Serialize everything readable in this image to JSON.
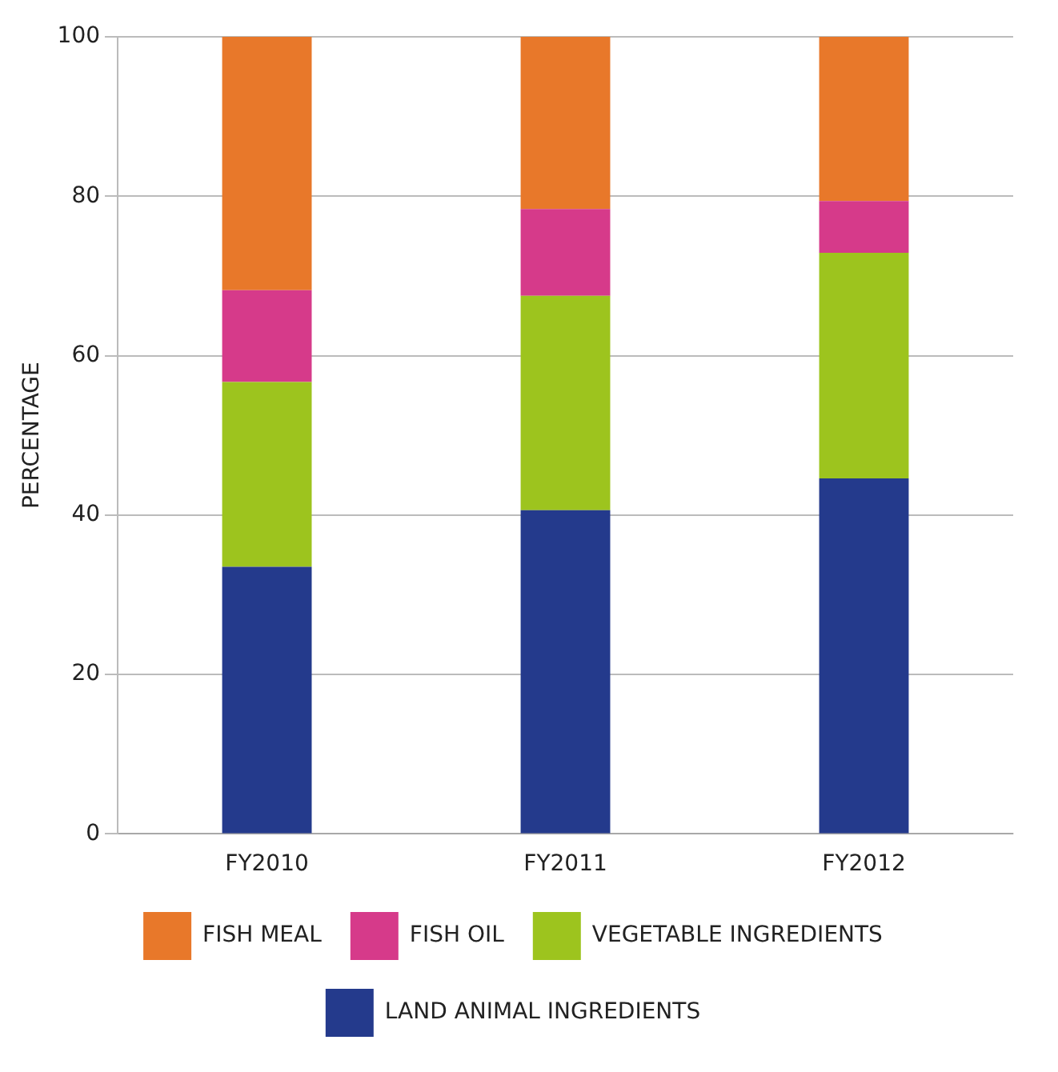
{
  "chart_data": {
    "type": "bar",
    "stacked": true,
    "ylabel": "PERCENTAGE",
    "categories": [
      "FY2010",
      "FY2011",
      "FY2012"
    ],
    "series": [
      {
        "name": "LAND ANIMAL INGREDIENTS",
        "color": "#243a8c",
        "values": [
          33.5,
          40.6,
          44.6
        ]
      },
      {
        "name": "VEGETABLE INGREDIENTS",
        "color": "#9dc41e",
        "values": [
          23.2,
          26.9,
          28.3
        ]
      },
      {
        "name": "FISH OIL",
        "color": "#d63a8a",
        "values": [
          11.5,
          10.9,
          6.5
        ]
      },
      {
        "name": "FISH MEAL",
        "color": "#e8782a",
        "values": [
          31.8,
          21.6,
          20.6
        ]
      }
    ],
    "ylim": [
      0,
      100
    ],
    "yticks": [
      0,
      20,
      40,
      60,
      80,
      100
    ],
    "grid": "y",
    "legend": "bottom"
  }
}
